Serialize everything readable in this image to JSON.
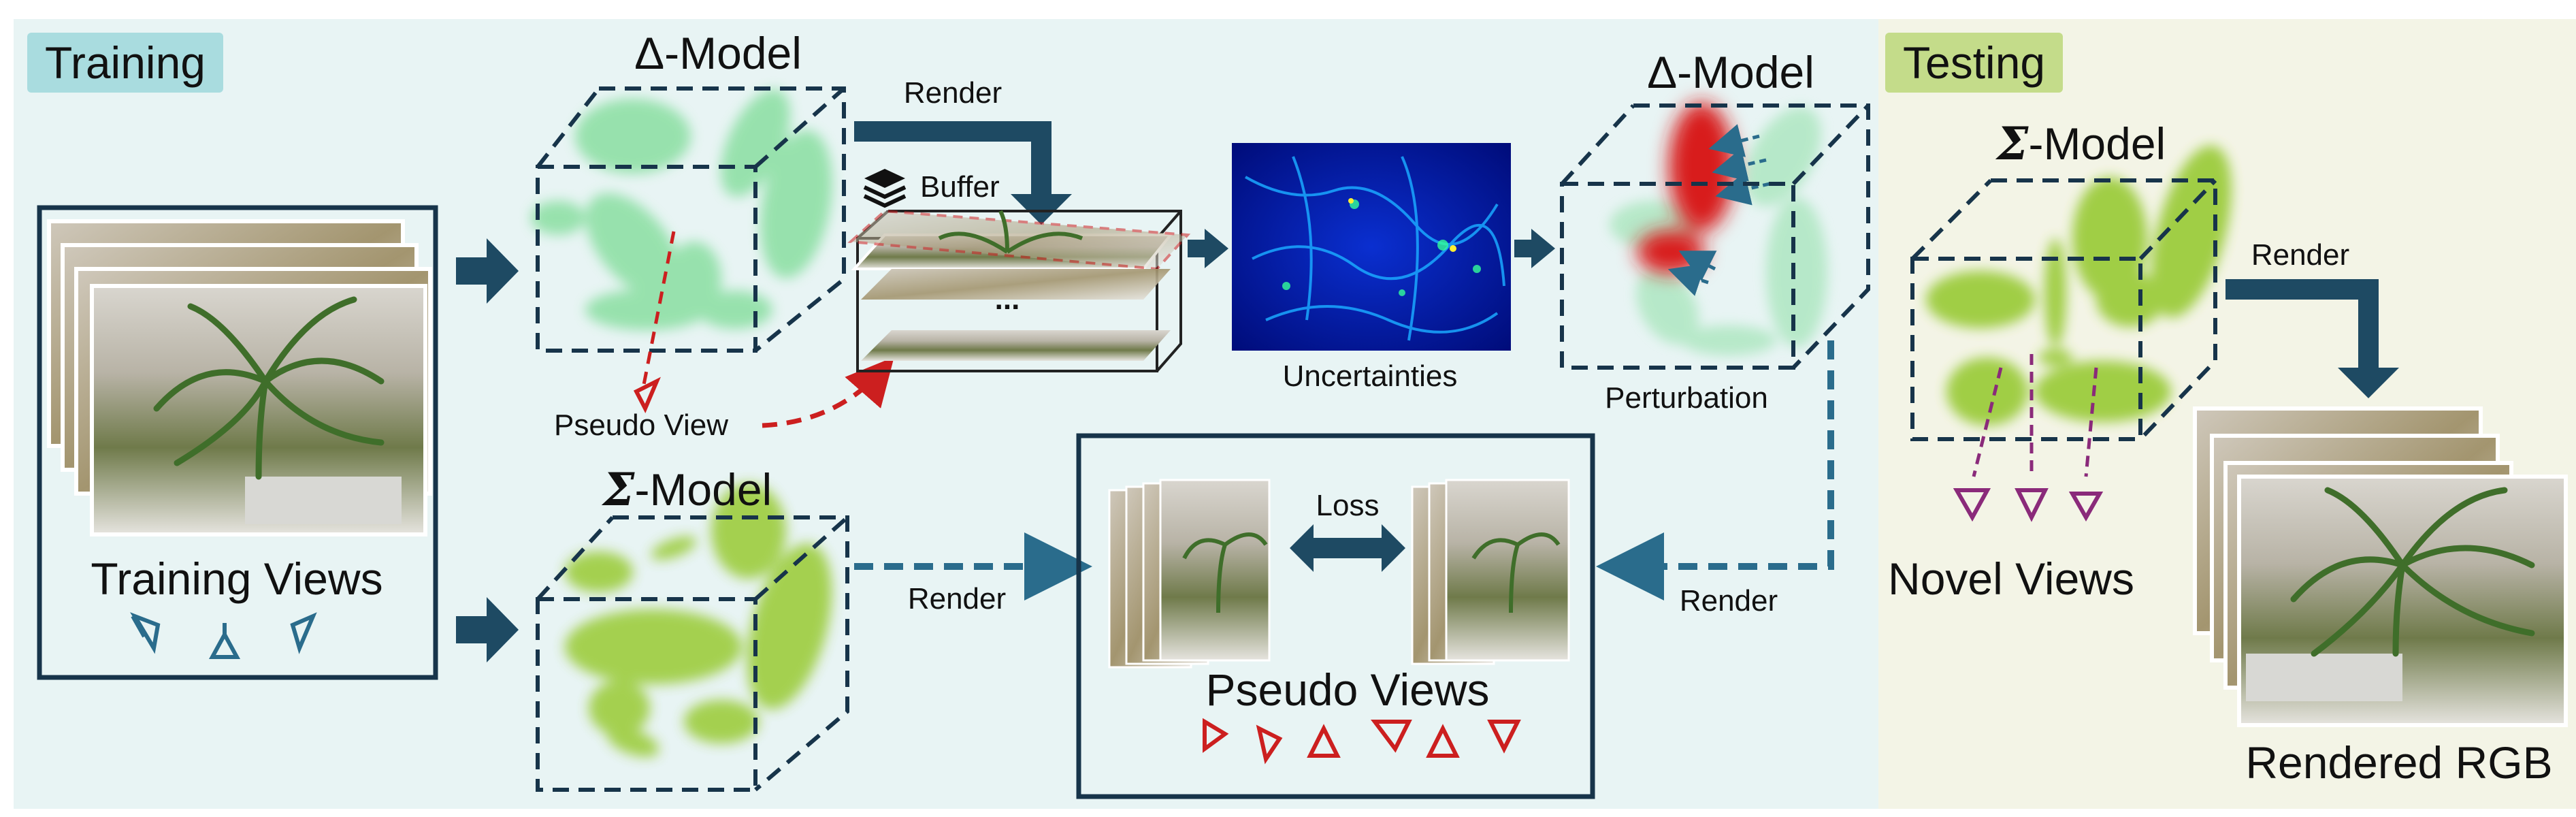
{
  "training": {
    "section_label": "Training",
    "delta_model_top": "Δ-Model",
    "render_top": "Render",
    "buffer": "Buffer",
    "uncertainties": "Uncertainties",
    "delta_model_right": "Δ-Model",
    "perturbation": "Perturbation",
    "pseudo_view": "Pseudo View",
    "training_views": "Training Views",
    "sigma_symbol": "Σ",
    "sigma_model_suffix": "-Model",
    "render_bottom_left": "Render",
    "loss": "Loss",
    "pseudo_views": "Pseudo Views",
    "render_bottom_right": "Render",
    "ellipsis": "..."
  },
  "testing": {
    "section_label": "Testing",
    "sigma_symbol": "Σ",
    "sigma_model_suffix": "-Model",
    "render": "Render",
    "novel_views": "Novel Views",
    "rendered_rgb": "Rendered RGB"
  },
  "colors": {
    "training_bg": "#e8f4f4",
    "testing_bg": "#f3f4e6",
    "training_badge": "#a9dcdf",
    "testing_badge": "#c4dc8a",
    "arrow_navy": "#1e4a63",
    "dashed_teal": "#2a6c8c",
    "red": "#cc1f1f",
    "purple": "#8a2a7a",
    "light_green": "#8fe0a6",
    "yellow_green": "#9ccc3c"
  }
}
